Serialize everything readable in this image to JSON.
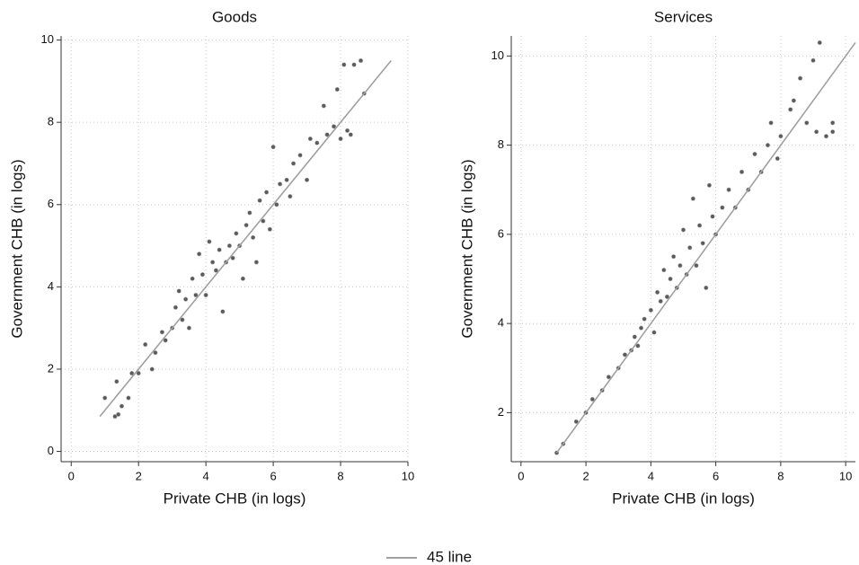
{
  "chart_data": [
    {
      "type": "scatter",
      "title": "Goods",
      "x_label": "Private CHB (in logs)",
      "y_label": "Government CHB (in logs)",
      "xlim": [
        -0.3,
        10
      ],
      "ylim": [
        -0.25,
        10.1
      ],
      "xticks": [
        0,
        2,
        4,
        6,
        8,
        10
      ],
      "yticks": [
        0,
        2,
        4,
        6,
        8,
        10
      ],
      "grid": true,
      "series": [
        {
          "type": "scatter",
          "color": "#5a5a5a",
          "x": [
            1.0,
            1.3,
            1.4,
            1.5,
            1.35,
            1.7,
            1.8,
            2.0,
            2.2,
            2.4,
            2.5,
            2.7,
            2.8,
            3.0,
            3.1,
            3.2,
            3.3,
            3.4,
            3.5,
            3.6,
            3.7,
            3.8,
            3.9,
            4.0,
            4.1,
            4.2,
            4.3,
            4.4,
            4.5,
            4.6,
            4.7,
            4.8,
            4.9,
            5.0,
            5.1,
            5.2,
            5.3,
            5.4,
            5.5,
            5.6,
            5.7,
            5.8,
            5.9,
            6.0,
            6.1,
            6.2,
            6.4,
            6.5,
            6.6,
            6.8,
            7.0,
            7.1,
            7.3,
            7.5,
            7.6,
            7.8,
            7.9,
            8.0,
            8.1,
            8.2,
            8.4,
            8.6,
            8.7,
            8.3
          ],
          "values": [
            1.3,
            0.85,
            0.9,
            1.1,
            1.7,
            1.3,
            1.9,
            1.9,
            2.6,
            2.0,
            2.4,
            2.9,
            2.7,
            3.0,
            3.5,
            3.9,
            3.2,
            3.7,
            3.0,
            4.2,
            3.8,
            4.8,
            4.3,
            3.8,
            5.1,
            4.6,
            4.4,
            4.9,
            3.4,
            4.6,
            5.0,
            4.7,
            5.3,
            5.0,
            4.2,
            5.5,
            5.8,
            5.2,
            4.6,
            6.1,
            5.6,
            6.3,
            5.4,
            7.4,
            6.0,
            6.5,
            6.6,
            6.2,
            7.0,
            7.2,
            6.6,
            7.6,
            7.5,
            8.4,
            7.7,
            7.9,
            8.8,
            7.6,
            9.4,
            7.8,
            9.4,
            9.5,
            8.7,
            7.7
          ]
        },
        {
          "type": "line",
          "color": "#a0a0a0",
          "x": [
            0.85,
            9.5
          ],
          "values": [
            0.85,
            9.5
          ]
        }
      ]
    },
    {
      "type": "scatter",
      "title": "Services",
      "x_label": "Private CHB (in logs)",
      "y_label": "Government CHB (in logs)",
      "xlim": [
        -0.3,
        10.3
      ],
      "ylim": [
        0.9,
        10.45
      ],
      "xticks": [
        0,
        2,
        4,
        6,
        8,
        10
      ],
      "yticks": [
        2,
        4,
        6,
        8,
        10
      ],
      "grid": true,
      "series": [
        {
          "type": "scatter",
          "color": "#5a5a5a",
          "x": [
            1.1,
            1.3,
            1.7,
            2.0,
            2.2,
            2.5,
            2.7,
            3.0,
            3.2,
            3.4,
            3.5,
            3.6,
            3.7,
            3.8,
            4.0,
            4.1,
            4.2,
            4.3,
            4.4,
            4.5,
            4.6,
            4.7,
            4.8,
            4.9,
            5.0,
            5.1,
            5.2,
            5.3,
            5.4,
            5.5,
            5.6,
            5.7,
            5.8,
            5.9,
            6.0,
            6.2,
            6.4,
            6.6,
            6.8,
            7.0,
            7.2,
            7.4,
            7.6,
            7.7,
            7.9,
            8.0,
            8.3,
            8.6,
            8.8,
            9.0,
            9.1,
            9.2,
            9.4,
            9.6,
            9.6,
            8.4
          ],
          "values": [
            1.1,
            1.3,
            1.8,
            2.0,
            2.3,
            2.5,
            2.8,
            3.0,
            3.3,
            3.4,
            3.7,
            3.5,
            3.9,
            4.1,
            4.3,
            3.8,
            4.7,
            4.5,
            5.2,
            4.6,
            5.0,
            5.5,
            4.8,
            5.3,
            6.1,
            5.1,
            5.7,
            6.8,
            5.3,
            6.2,
            5.8,
            4.8,
            7.1,
            6.4,
            6.0,
            6.6,
            7.0,
            6.6,
            7.4,
            7.0,
            7.8,
            7.4,
            8.0,
            8.5,
            7.7,
            8.2,
            8.8,
            9.5,
            8.5,
            9.9,
            8.3,
            10.3,
            8.2,
            8.5,
            8.3,
            9.0
          ]
        },
        {
          "type": "line",
          "color": "#a0a0a0",
          "x": [
            1.1,
            10.3
          ],
          "values": [
            1.1,
            10.3
          ]
        }
      ]
    }
  ],
  "legend": {
    "items": [
      {
        "name": "45 line",
        "color": "#a0a0a0"
      }
    ]
  }
}
